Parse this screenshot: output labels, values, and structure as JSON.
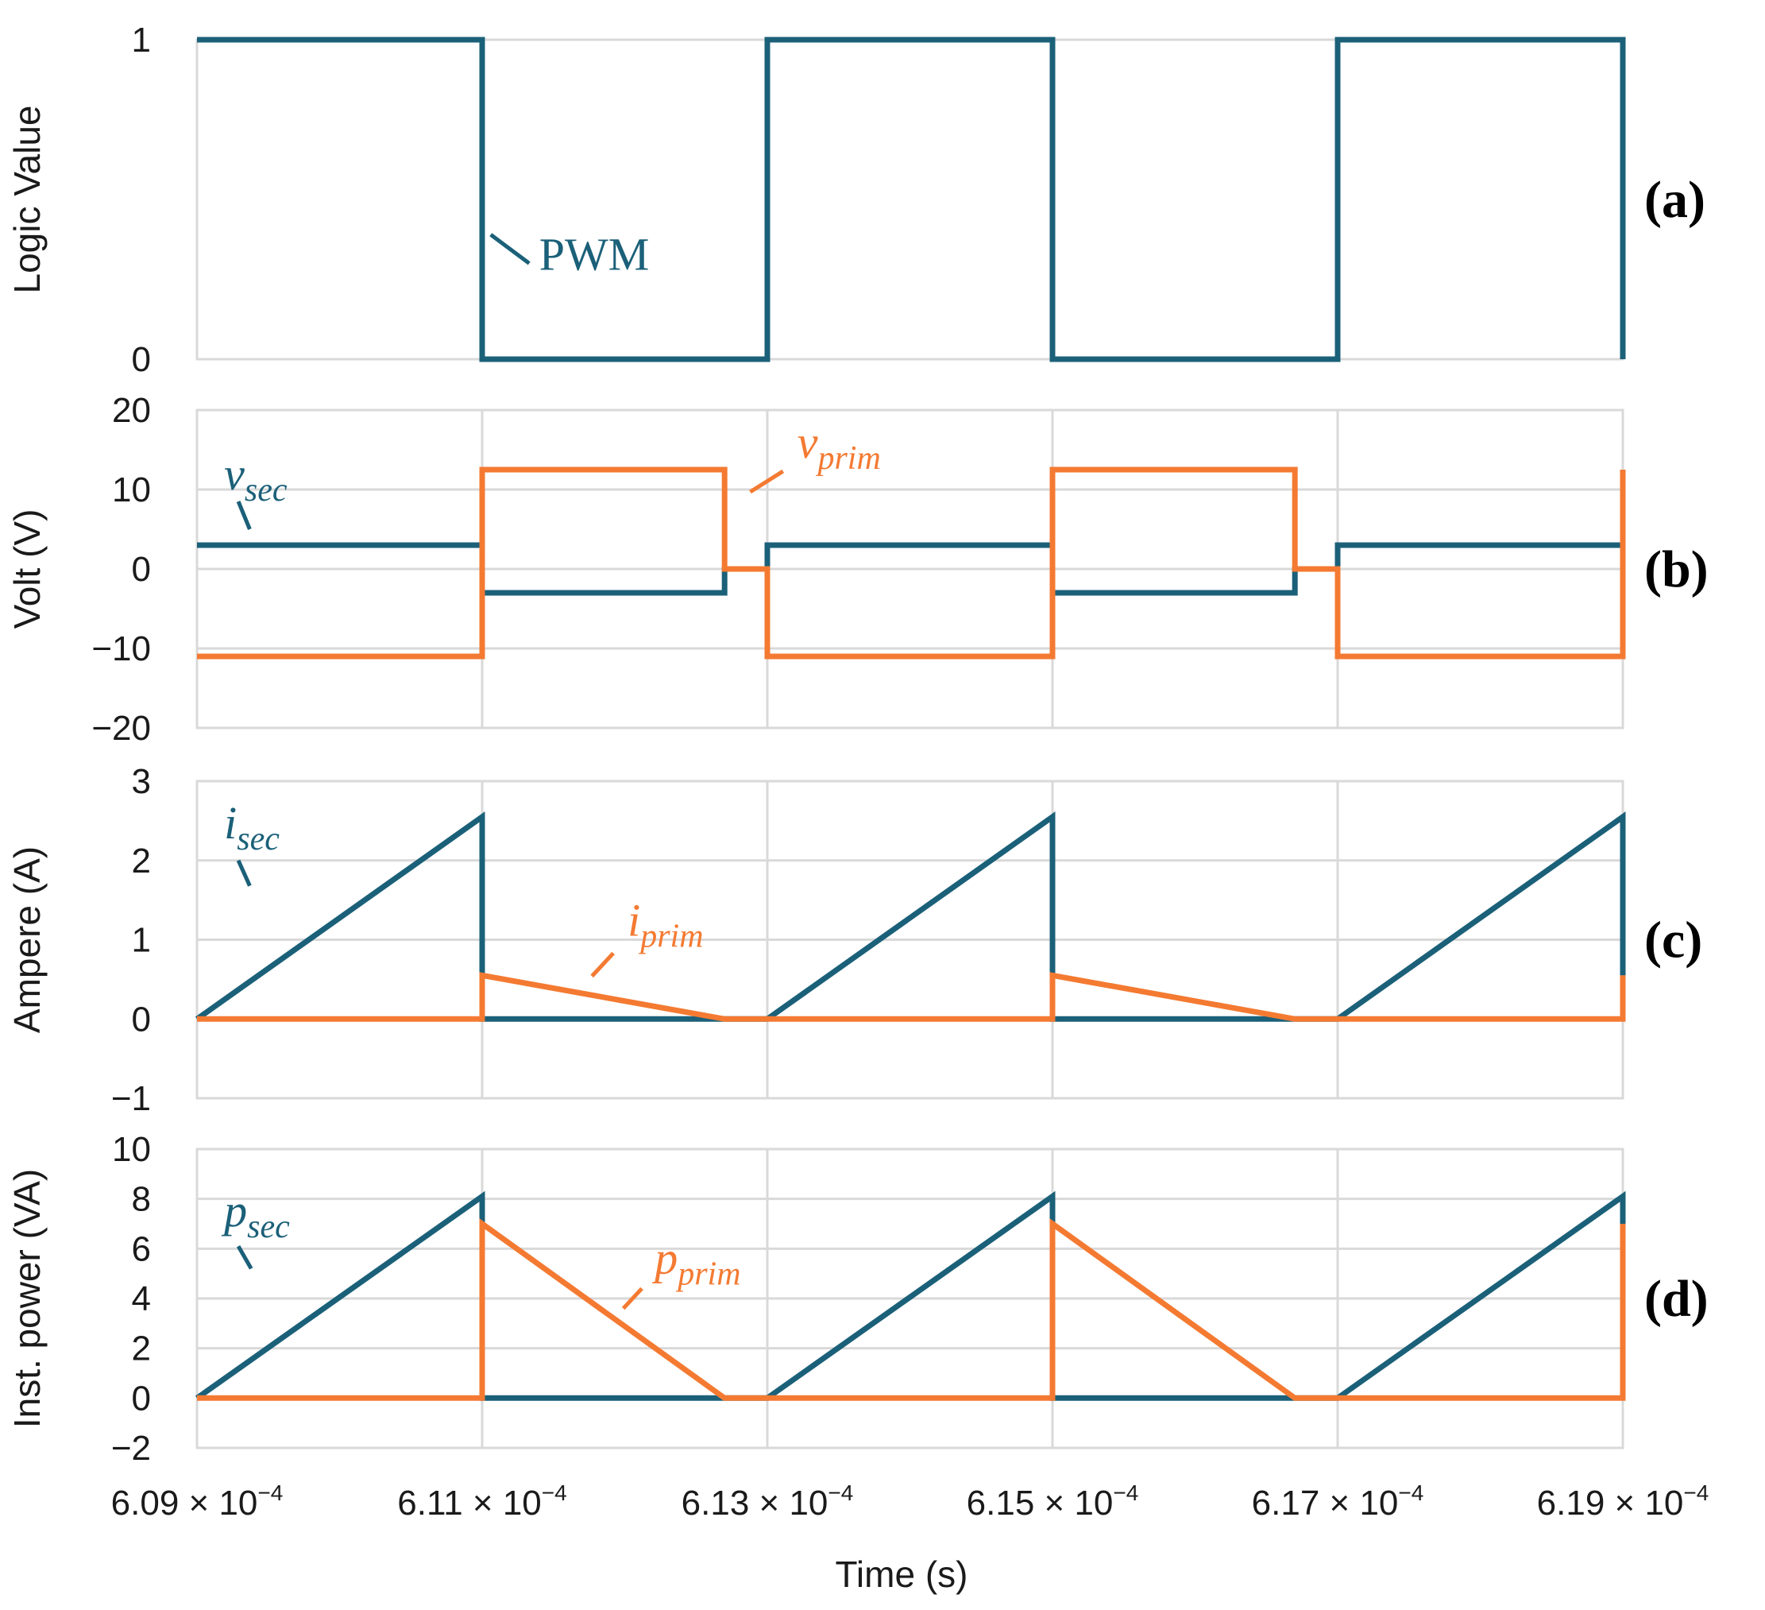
{
  "colors": {
    "sec": "#1b6079",
    "prim": "#f47a32"
  },
  "x_axis": {
    "label": "Time (s)",
    "ticks": [
      {
        "mant": "6.09",
        "times": "×",
        "base": "10",
        "exp": "−4"
      },
      {
        "mant": "6.11",
        "times": "×",
        "base": "10",
        "exp": "−4"
      },
      {
        "mant": "6.13",
        "times": "×",
        "base": "10",
        "exp": "−4"
      },
      {
        "mant": "6.15",
        "times": "×",
        "base": "10",
        "exp": "−4"
      },
      {
        "mant": "6.17",
        "times": "×",
        "base": "10",
        "exp": "−4"
      },
      {
        "mant": "6.19",
        "times": "×",
        "base": "10",
        "exp": "−4"
      }
    ]
  },
  "chart_data": [
    {
      "type": "line",
      "panel": "(a)",
      "ylabel": "Logic Value",
      "xlim": [
        0.000609,
        0.000619
      ],
      "ylim": [
        0,
        1
      ],
      "yticks": [
        {
          "v": 0,
          "label": "0"
        },
        {
          "v": 1,
          "label": "1"
        }
      ],
      "grid": false,
      "series": [
        {
          "name": "PWM",
          "color_key": "sec",
          "x": [
            0.000609,
            0.000611,
            0.000611,
            0.000613,
            0.000613,
            0.000615,
            0.000615,
            0.000617,
            0.000617,
            0.000619,
            0.000619
          ],
          "y": [
            1,
            1,
            0,
            0,
            1,
            1,
            0,
            0,
            1,
            1,
            0
          ]
        }
      ],
      "annotations": [
        {
          "color_key": "sec",
          "parts": [
            {
              "t": "PWM",
              "cls": "ann-up"
            }
          ],
          "text_at": [
            0.0006114,
            0.28
          ],
          "line": [
            [
              0.00061106,
              0.39
            ],
            [
              0.00061133,
              0.3
            ]
          ]
        }
      ]
    },
    {
      "type": "line",
      "panel": "(b)",
      "ylabel": "Volt (V)",
      "xlim": [
        0.000609,
        0.000619
      ],
      "ylim": [
        -20,
        20
      ],
      "yticks": [
        {
          "v": -20,
          "label": "−20"
        },
        {
          "v": -10,
          "label": "−10"
        },
        {
          "v": 0,
          "label": "0"
        },
        {
          "v": 10,
          "label": "10"
        },
        {
          "v": 20,
          "label": "20"
        }
      ],
      "grid": true,
      "series": [
        {
          "name": "v_sec",
          "color_key": "sec",
          "x": [
            0.000609,
            0.000611,
            0.000611,
            0.0006127,
            0.0006127,
            0.000613,
            0.000613,
            0.000615,
            0.000615,
            0.0006167,
            0.0006167,
            0.000617,
            0.000617,
            0.000619
          ],
          "y": [
            3,
            3,
            -3,
            -3,
            0,
            0,
            3,
            3,
            -3,
            -3,
            0,
            0,
            3,
            3
          ]
        },
        {
          "name": "v_prim",
          "color_key": "prim",
          "x": [
            0.000609,
            0.000611,
            0.000611,
            0.0006127,
            0.0006127,
            0.000613,
            0.000613,
            0.000615,
            0.000615,
            0.0006167,
            0.0006167,
            0.000617,
            0.000617,
            0.000619,
            0.000619
          ],
          "y": [
            -11,
            -11,
            12.5,
            12.5,
            0,
            0,
            -11,
            -11,
            12.5,
            12.5,
            0,
            0,
            -11,
            -11,
            12.5
          ]
        }
      ],
      "annotations": [
        {
          "color_key": "sec",
          "parts": [
            {
              "t": "v",
              "cls": "ann"
            },
            {
              "t": "sec",
              "cls": "ann sub"
            }
          ],
          "text_at": [
            0.00060919,
            10
          ],
          "line": [
            [
              0.00060929,
              8.5
            ],
            [
              0.00060937,
              5
            ]
          ]
        },
        {
          "color_key": "prim",
          "parts": [
            {
              "t": "v",
              "cls": "ann"
            },
            {
              "t": "prim",
              "cls": "ann sub"
            }
          ],
          "text_at": [
            0.00061321,
            14
          ],
          "line": [
            [
              0.00061288,
              9.7
            ],
            [
              0.00061311,
              12.3
            ]
          ]
        }
      ]
    },
    {
      "type": "line",
      "panel": "(c)",
      "ylabel": "Ampere (A)",
      "xlim": [
        0.000609,
        0.000619
      ],
      "ylim": [
        -1,
        3
      ],
      "yticks": [
        {
          "v": -1,
          "label": "−1"
        },
        {
          "v": 0,
          "label": "0"
        },
        {
          "v": 1,
          "label": "1"
        },
        {
          "v": 2,
          "label": "2"
        },
        {
          "v": 3,
          "label": "3"
        }
      ],
      "grid": true,
      "series": [
        {
          "name": "i_sec",
          "color_key": "sec",
          "x": [
            0.000609,
            0.000611,
            0.000611,
            0.000613,
            0.000615,
            0.000615,
            0.000617,
            0.000619,
            0.000619
          ],
          "y": [
            0,
            2.55,
            0,
            0,
            2.55,
            0,
            0,
            2.55,
            0.55
          ]
        },
        {
          "name": "i_prim",
          "color_key": "prim",
          "x": [
            0.000609,
            0.000611,
            0.000611,
            0.0006127,
            0.000615,
            0.000615,
            0.0006167,
            0.000619,
            0.000619
          ],
          "y": [
            0,
            0,
            0.55,
            0,
            0,
            0.55,
            0,
            0,
            0.55
          ]
        }
      ],
      "annotations": [
        {
          "color_key": "sec",
          "parts": [
            {
              "t": "i",
              "cls": "ann"
            },
            {
              "t": "sec",
              "cls": "ann sub"
            }
          ],
          "text_at": [
            0.00060919,
            2.28
          ],
          "line": [
            [
              0.00060929,
              2.0
            ],
            [
              0.00060937,
              1.68
            ]
          ]
        },
        {
          "color_key": "prim",
          "parts": [
            {
              "t": "i",
              "cls": "ann"
            },
            {
              "t": "prim",
              "cls": "ann sub"
            }
          ],
          "text_at": [
            0.00061202,
            1.05
          ],
          "line": [
            [
              0.00061177,
              0.54
            ],
            [
              0.00061192,
              0.83
            ]
          ]
        }
      ]
    },
    {
      "type": "line",
      "panel": "(d)",
      "ylabel": "Inst. power (VA)",
      "xlim": [
        0.000609,
        0.000619
      ],
      "ylim": [
        -2,
        10
      ],
      "yticks": [
        {
          "v": -2,
          "label": "−2"
        },
        {
          "v": 0,
          "label": "0"
        },
        {
          "v": 2,
          "label": "2"
        },
        {
          "v": 4,
          "label": "4"
        },
        {
          "v": 6,
          "label": "6"
        },
        {
          "v": 8,
          "label": "8"
        },
        {
          "v": 10,
          "label": "10"
        }
      ],
      "grid": true,
      "series": [
        {
          "name": "p_sec",
          "color_key": "sec",
          "x": [
            0.000609,
            0.000611,
            0.000611,
            0.000613,
            0.000615,
            0.000615,
            0.000617,
            0.000619,
            0.000619
          ],
          "y": [
            0,
            8.1,
            0,
            0,
            8.1,
            0,
            0,
            8.1,
            7.0
          ]
        },
        {
          "name": "p_prim",
          "color_key": "prim",
          "x": [
            0.000609,
            0.000611,
            0.000611,
            0.0006127,
            0.000615,
            0.000615,
            0.0006167,
            0.000619,
            0.000619
          ],
          "y": [
            0,
            0,
            7.0,
            0,
            0,
            7.0,
            0,
            0,
            7.0
          ]
        }
      ],
      "annotations": [
        {
          "color_key": "sec",
          "parts": [
            {
              "t": "p",
              "cls": "ann"
            },
            {
              "t": "sec",
              "cls": "ann sub"
            }
          ],
          "text_at": [
            0.00060919,
            6.9
          ],
          "line": [
            [
              0.00060929,
              6.1
            ],
            [
              0.00060938,
              5.2
            ]
          ]
        },
        {
          "color_key": "prim",
          "parts": [
            {
              "t": "p",
              "cls": "ann"
            },
            {
              "t": "prim",
              "cls": "ann sub"
            }
          ],
          "text_at": [
            0.00061221,
            5.0
          ],
          "line": [
            [
              0.00061199,
              3.6
            ],
            [
              0.00061212,
              4.4
            ]
          ]
        }
      ]
    }
  ]
}
